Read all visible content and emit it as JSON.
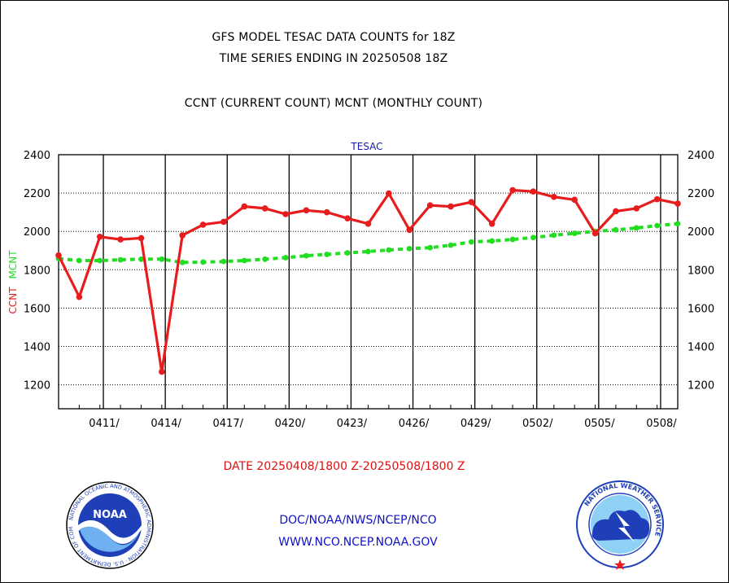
{
  "titles": {
    "line1": "GFS MODEL TESAC DATA COUNTS for 18Z",
    "line2": "TIME SERIES ENDING IN 20250508 18Z",
    "line3": "CCNT (CURRENT COUNT) MCNT (MONTHLY COUNT)"
  },
  "date_range": "DATE 20250408/1800 Z-20250508/1800 Z",
  "footer": {
    "line1": "DOC/NOAA/NWS/NCEP/NCO",
    "line2": "WWW.NCO.NCEP.NOAA.GOV"
  },
  "logos": {
    "noaa_text": "NOAA",
    "noaa_ring": "NATIONAL OCEANIC AND ATMOSPHERIC ADMINISTRATION · U.S. DEPARTMENT OF COMMERCE",
    "nws_ring": "NATIONAL WEATHER SERVICE"
  },
  "chart_data": {
    "type": "line",
    "title": "TESAC",
    "ylabel_left": {
      "ccnt": "CCNT",
      "mcnt": "MCNT"
    },
    "ylim": [
      1075,
      2400
    ],
    "yticks": [
      1200,
      1400,
      1600,
      1800,
      2000,
      2200,
      2400
    ],
    "ytick_labels": [
      "1200",
      "1400",
      "1600",
      "1800",
      "2000",
      "2200",
      "2400"
    ],
    "x_start_day": 0,
    "x_end_day": 30,
    "xticks": [
      {
        "day": 2.17,
        "label": "0411/"
      },
      {
        "day": 5.17,
        "label": "0414/"
      },
      {
        "day": 8.17,
        "label": "0417/"
      },
      {
        "day": 11.17,
        "label": "0420/"
      },
      {
        "day": 14.17,
        "label": "0423/"
      },
      {
        "day": 17.17,
        "label": "0426/"
      },
      {
        "day": 20.17,
        "label": "0429/"
      },
      {
        "day": 23.17,
        "label": "0502/"
      },
      {
        "day": 26.17,
        "label": "0505/"
      },
      {
        "day": 29.17,
        "label": "0508/"
      }
    ],
    "grid": true,
    "colors": {
      "ccnt": "#e81c1c",
      "mcnt": "#22dd22",
      "axis": "#000000",
      "title": "#1a1aaa"
    },
    "series": [
      {
        "name": "CCNT",
        "x": [
          0,
          1,
          2,
          3,
          4,
          5,
          6,
          7,
          8,
          9,
          10,
          11,
          12,
          13,
          14,
          15,
          16,
          17,
          18,
          19,
          20,
          21,
          22,
          23,
          24,
          25,
          26,
          27,
          28,
          29,
          30
        ],
        "values": [
          1875,
          1658,
          1972,
          1958,
          1965,
          1268,
          1980,
          2035,
          2050,
          2130,
          2120,
          2090,
          2110,
          2100,
          2068,
          2040,
          2198,
          2008,
          2136,
          2130,
          2153,
          2040,
          2215,
          2208,
          2180,
          2165,
          1990,
          2105,
          2120,
          2168,
          2145
        ]
      },
      {
        "name": "MCNT",
        "x": [
          0,
          1,
          2,
          3,
          4,
          5,
          6,
          7,
          8,
          9,
          10,
          11,
          12,
          13,
          14,
          15,
          16,
          17,
          18,
          19,
          20,
          21,
          22,
          23,
          24,
          25,
          26,
          27,
          28,
          29,
          30
        ],
        "values": [
          1858,
          1848,
          1848,
          1852,
          1855,
          1855,
          1838,
          1840,
          1843,
          1848,
          1855,
          1863,
          1873,
          1880,
          1888,
          1895,
          1903,
          1910,
          1915,
          1928,
          1945,
          1950,
          1958,
          1968,
          1980,
          1990,
          2000,
          2008,
          2018,
          2030,
          2040
        ]
      }
    ]
  }
}
